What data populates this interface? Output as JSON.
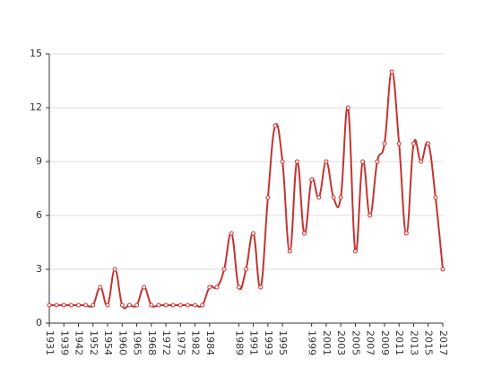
{
  "chart_data": {
    "type": "line",
    "categories": [
      "1931",
      null,
      "1939",
      null,
      "1942",
      null,
      "1952",
      null,
      "1954",
      null,
      "1960",
      null,
      "1965",
      null,
      "1968",
      null,
      "1972",
      null,
      "1975",
      null,
      "1982",
      null,
      "1984",
      null,
      null,
      null,
      "1989",
      null,
      "1991",
      null,
      "1993",
      null,
      "1995",
      null,
      null,
      null,
      "1999",
      null,
      "2001",
      null,
      "2003",
      null,
      "2005",
      null,
      "2007",
      null,
      "2009",
      null,
      "2011",
      null,
      "2013",
      null,
      "2015",
      null,
      "2017"
    ],
    "series": [
      {
        "color": "#c23531",
        "values": [
          1,
          1,
          1,
          1,
          1,
          1,
          1,
          2,
          1,
          3,
          1,
          1,
          1,
          2,
          1,
          1,
          1,
          1,
          1,
          1,
          1,
          1,
          2,
          2,
          3,
          5,
          2,
          3,
          5,
          2,
          7,
          11,
          9,
          4,
          9,
          5,
          8,
          7,
          9,
          7,
          7,
          12,
          4,
          9,
          6,
          9,
          10,
          14,
          10,
          5,
          10,
          9,
          10,
          7,
          3
        ]
      }
    ],
    "ylim": [
      0,
      15
    ],
    "yticks": [
      0,
      3,
      6,
      9,
      12,
      15
    ],
    "grid": true
  }
}
